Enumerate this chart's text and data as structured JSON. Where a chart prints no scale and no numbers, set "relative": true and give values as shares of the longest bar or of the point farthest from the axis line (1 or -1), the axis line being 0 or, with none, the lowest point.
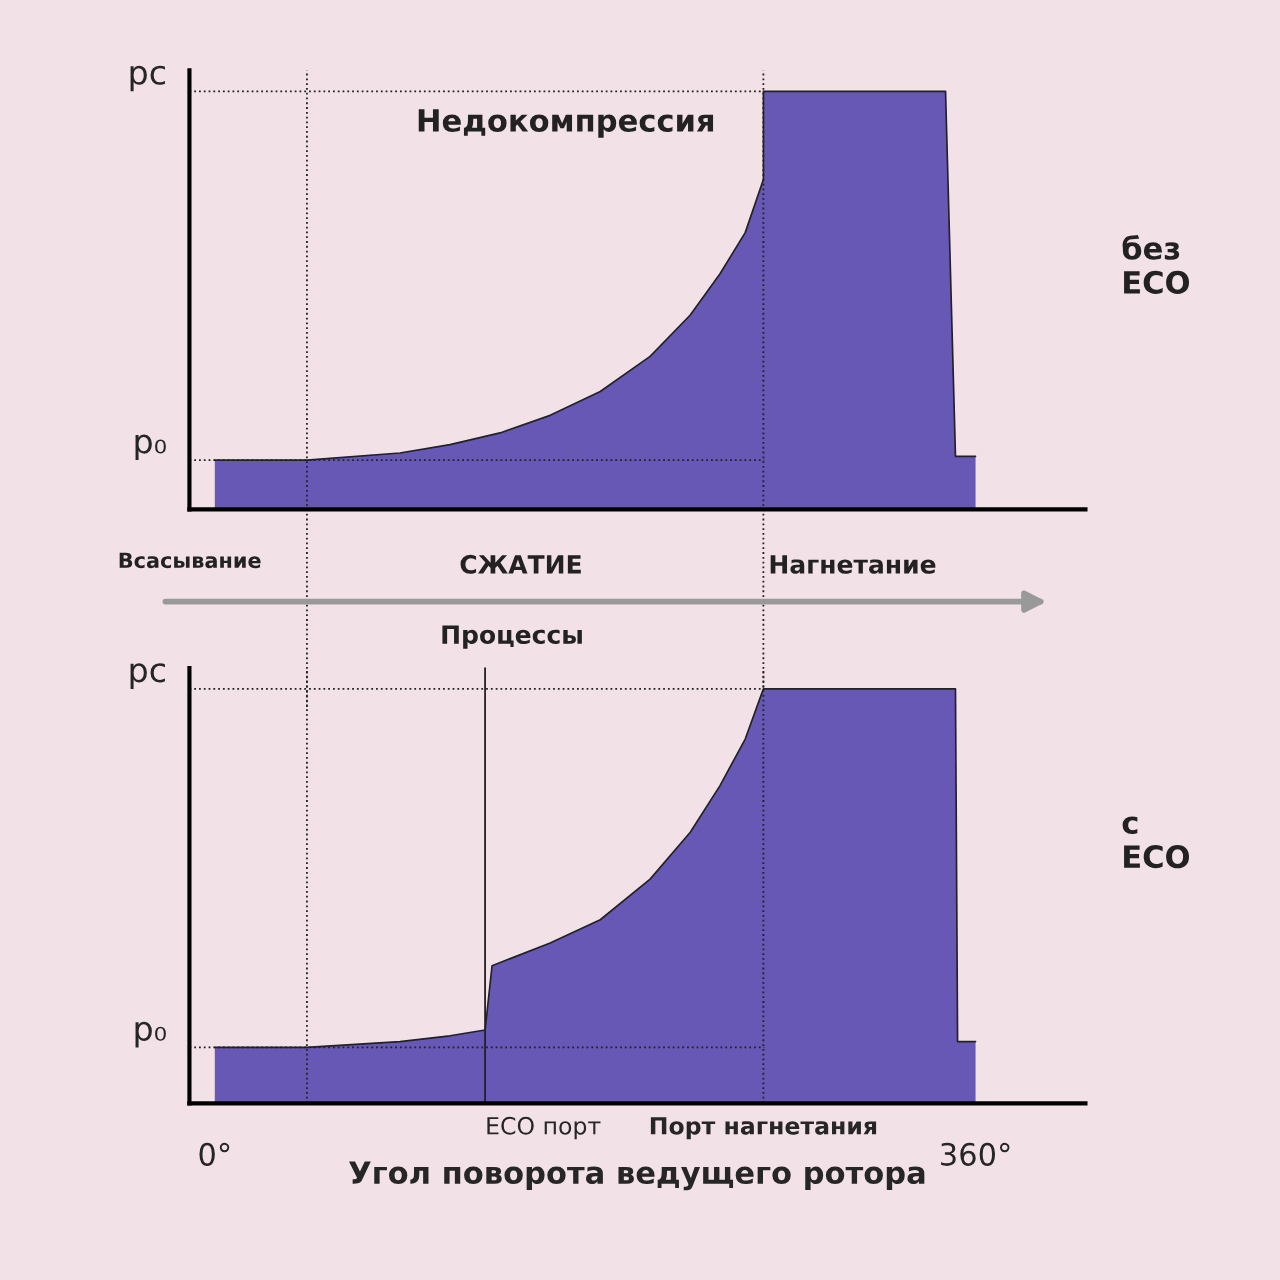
{
  "chart_data": [
    {
      "type": "area",
      "relative": true,
      "xlim": [
        -12,
        412
      ],
      "tick_labels": false,
      "x": [
        0,
        43.6,
        87.6,
        111.3,
        135,
        158.7,
        182.4,
        206,
        225,
        239,
        251,
        259.6,
        259.6,
        345.8,
        350.5,
        360
      ],
      "series": [
        {
          "color": "#6658b4",
          "values": [
            0.118,
            0.118,
            0.135,
            0.155,
            0.183,
            0.225,
            0.282,
            0.366,
            0.465,
            0.563,
            0.662,
            0.789,
            1,
            1,
            0.127,
            0.127
          ]
        }
      ],
      "ref_lines": [
        {
          "axis": "y",
          "value": 0.118,
          "label": "p₀",
          "line_style": "dotted"
        },
        {
          "axis": "y",
          "value": 1,
          "label": "pс",
          "line_style": "dotted"
        },
        {
          "axis": "x",
          "value": 43.6,
          "line_style": "dotted"
        },
        {
          "axis": "x",
          "value": 259.6,
          "line_style": "dotted"
        }
      ],
      "annotations": [
        "Недокомпрессия",
        "без\nECO",
        "Всасывание",
        "СЖАТИЕ",
        "Нагнетание",
        "Процессы"
      ]
    },
    {
      "type": "area",
      "relative": true,
      "xlim": [
        -12,
        412
      ],
      "tick_labels": "x",
      "xticks": [
        {
          "value": 0,
          "label": "0°"
        },
        {
          "value": 360,
          "label": "360°"
        }
      ],
      "xlabel": "Угол поворота ведущего ротора",
      "x": [
        0,
        43.6,
        87.6,
        111.3,
        127.9,
        131.2,
        158.7,
        182.4,
        206,
        225,
        239,
        251,
        259.6,
        350.5,
        351.5,
        360
      ],
      "series": [
        {
          "color": "#6658b4",
          "values": [
            0.135,
            0.135,
            0.149,
            0.163,
            0.177,
            0.332,
            0.387,
            0.443,
            0.541,
            0.654,
            0.766,
            0.879,
            1,
            1,
            0.149,
            0.149
          ]
        }
      ],
      "ref_lines": [
        {
          "axis": "y",
          "value": 0.135,
          "label": "p₀",
          "line_style": "dotted"
        },
        {
          "axis": "y",
          "value": 1,
          "label": "pс",
          "line_style": "dotted"
        },
        {
          "axis": "x",
          "value": 43.6,
          "line_style": "dotted"
        },
        {
          "axis": "x",
          "value": 127.9,
          "label": "ECO порт",
          "line_style": "solid"
        },
        {
          "axis": "x",
          "value": 259.6,
          "label": "Порт нагнетания",
          "line_style": "dotted"
        }
      ],
      "annotations": [
        "с\nECO"
      ]
    }
  ]
}
